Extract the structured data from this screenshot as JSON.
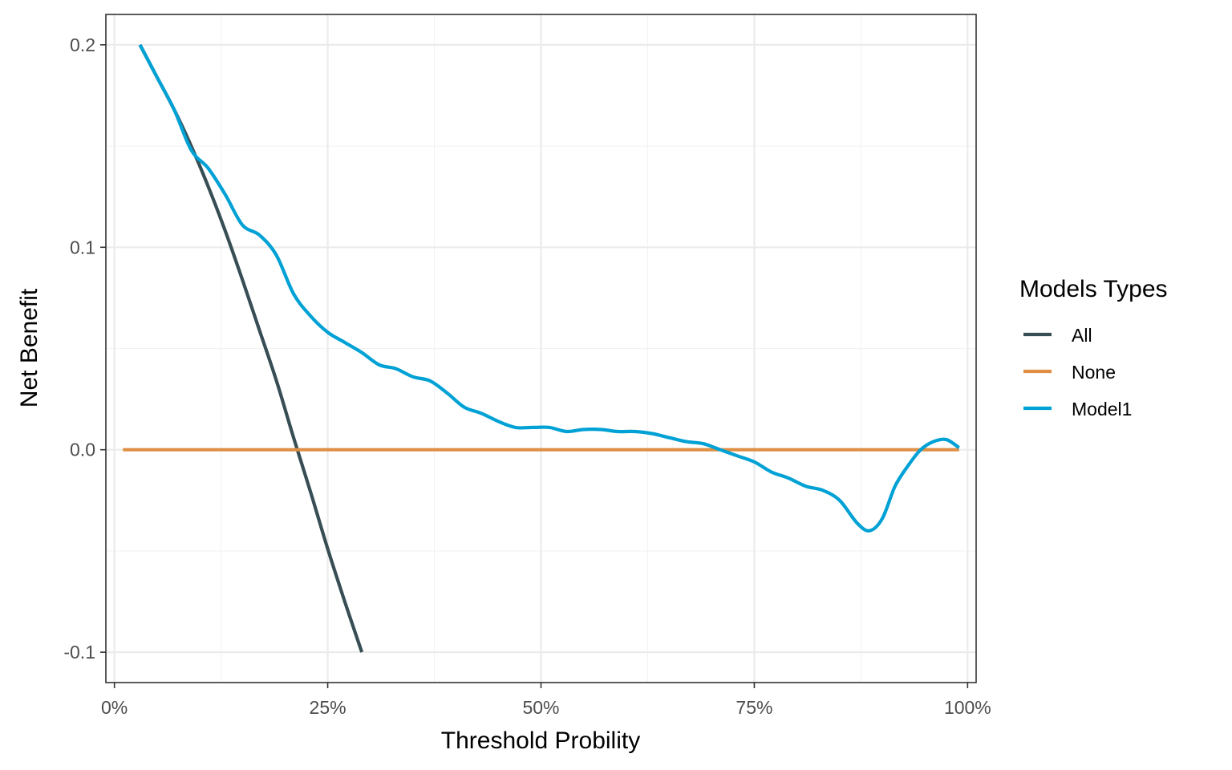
{
  "chart_data": {
    "type": "line",
    "title": "",
    "xlabel": "Threshold Probility",
    "ylabel": "Net Benefit",
    "xlim": [
      -0.01,
      1.01
    ],
    "ylim": [
      -0.115,
      0.215
    ],
    "x_ticks": [
      0,
      0.25,
      0.5,
      0.75,
      1.0
    ],
    "x_tick_labels": [
      "0%",
      "25%",
      "50%",
      "75%",
      "100%"
    ],
    "y_ticks": [
      -0.1,
      0.0,
      0.1,
      0.2
    ],
    "y_tick_labels": [
      "-0.1",
      "0.0",
      "0.1",
      "0.2"
    ],
    "grid": true,
    "legend": {
      "title": "Models Types",
      "position": "right",
      "entries": [
        "All",
        "None",
        "Model1"
      ]
    },
    "series": [
      {
        "name": "All",
        "color": "#374E55",
        "x": [
          0.03,
          0.05,
          0.07,
          0.09,
          0.11,
          0.13,
          0.15,
          0.17,
          0.19,
          0.21,
          0.23,
          0.25,
          0.27,
          0.29
        ],
        "y": [
          0.2,
          0.184,
          0.168,
          0.15,
          0.13,
          0.108,
          0.084,
          0.059,
          0.034,
          0.006,
          -0.021,
          -0.049,
          -0.075,
          -0.1
        ]
      },
      {
        "name": "None",
        "color": "#DF8F44",
        "x": [
          0.01,
          0.99
        ],
        "y": [
          0.0,
          0.0
        ]
      },
      {
        "name": "Model1",
        "color": "#00A1D5",
        "x": [
          0.03,
          0.05,
          0.07,
          0.09,
          0.11,
          0.13,
          0.15,
          0.17,
          0.19,
          0.21,
          0.23,
          0.25,
          0.27,
          0.29,
          0.31,
          0.33,
          0.35,
          0.37,
          0.39,
          0.41,
          0.43,
          0.45,
          0.47,
          0.49,
          0.51,
          0.53,
          0.55,
          0.57,
          0.59,
          0.61,
          0.63,
          0.65,
          0.67,
          0.69,
          0.71,
          0.73,
          0.75,
          0.77,
          0.79,
          0.81,
          0.83,
          0.85,
          0.87,
          0.885,
          0.9,
          0.915,
          0.93,
          0.945,
          0.96,
          0.975,
          0.99
        ],
        "y": [
          0.2,
          0.184,
          0.168,
          0.148,
          0.139,
          0.126,
          0.111,
          0.106,
          0.096,
          0.077,
          0.066,
          0.058,
          0.053,
          0.048,
          0.042,
          0.04,
          0.036,
          0.034,
          0.028,
          0.021,
          0.018,
          0.014,
          0.011,
          0.011,
          0.011,
          0.009,
          0.01,
          0.01,
          0.009,
          0.009,
          0.008,
          0.006,
          0.004,
          0.003,
          0.0,
          -0.003,
          -0.006,
          -0.011,
          -0.014,
          -0.018,
          -0.02,
          -0.025,
          -0.036,
          -0.04,
          -0.034,
          -0.018,
          -0.008,
          0.0,
          0.004,
          0.005,
          0.001
        ]
      }
    ]
  }
}
